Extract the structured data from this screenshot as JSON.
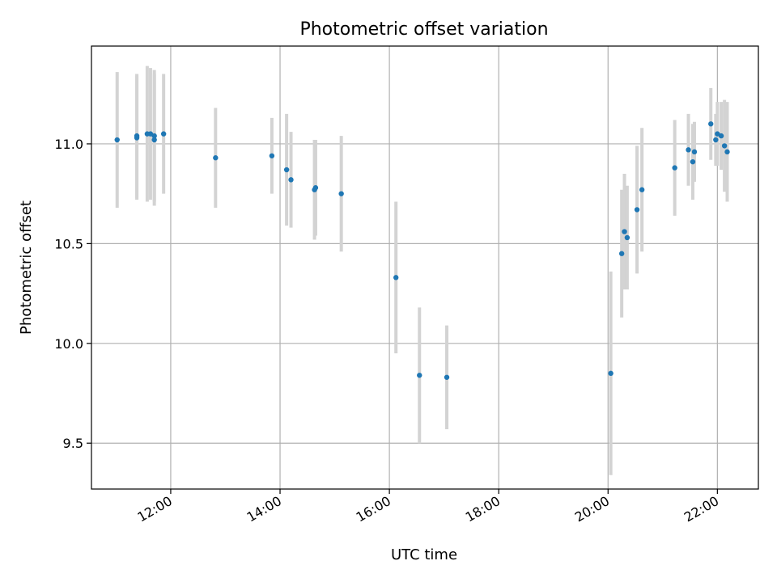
{
  "chart_data": {
    "type": "scatter",
    "title": "Photometric offset variation",
    "xlabel": "UTC time",
    "ylabel": "Photometric offset",
    "x_unit": "hours UTC",
    "xlim": [
      10.55,
      22.75
    ],
    "ylim": [
      9.27,
      11.49
    ],
    "x_ticks": [
      {
        "value": 12,
        "label": "12:00"
      },
      {
        "value": 14,
        "label": "14:00"
      },
      {
        "value": 16,
        "label": "16:00"
      },
      {
        "value": 18,
        "label": "18:00"
      },
      {
        "value": 20,
        "label": "20:00"
      },
      {
        "value": 22,
        "label": "22:00"
      }
    ],
    "y_ticks": [
      {
        "value": 9.5,
        "label": "9.5"
      },
      {
        "value": 10.0,
        "label": "10.0"
      },
      {
        "value": 10.5,
        "label": "10.5"
      },
      {
        "value": 11.0,
        "label": "11.0"
      }
    ],
    "grid": true,
    "colors": {
      "point": "#1f77b4",
      "errorbar": "#d3d3d3",
      "grid": "#b0b0b0"
    },
    "points": [
      {
        "x": 11.02,
        "y": 11.02,
        "yerr": 0.34
      },
      {
        "x": 11.38,
        "y": 11.04,
        "yerr": 0.31
      },
      {
        "x": 11.38,
        "y": 11.03,
        "yerr": 0.31
      },
      {
        "x": 11.57,
        "y": 11.05,
        "yerr": 0.34
      },
      {
        "x": 11.63,
        "y": 11.05,
        "yerr": 0.33
      },
      {
        "x": 11.7,
        "y": 11.04,
        "yerr": 0.33
      },
      {
        "x": 11.7,
        "y": 11.02,
        "yerr": 0.33
      },
      {
        "x": 11.87,
        "y": 11.05,
        "yerr": 0.3
      },
      {
        "x": 12.82,
        "y": 10.93,
        "yerr": 0.25
      },
      {
        "x": 13.85,
        "y": 10.94,
        "yerr": 0.19
      },
      {
        "x": 14.12,
        "y": 10.87,
        "yerr": 0.28
      },
      {
        "x": 14.2,
        "y": 10.82,
        "yerr": 0.24
      },
      {
        "x": 14.65,
        "y": 10.78,
        "yerr": 0.24
      },
      {
        "x": 14.63,
        "y": 10.77,
        "yerr": 0.25
      },
      {
        "x": 15.12,
        "y": 10.75,
        "yerr": 0.29
      },
      {
        "x": 16.12,
        "y": 10.33,
        "yerr": 0.38
      },
      {
        "x": 16.55,
        "y": 9.84,
        "yerr": 0.34
      },
      {
        "x": 17.05,
        "y": 9.83,
        "yerr": 0.26
      },
      {
        "x": 20.05,
        "y": 9.85,
        "yerr": 0.51
      },
      {
        "x": 20.25,
        "y": 10.45,
        "yerr": 0.32
      },
      {
        "x": 20.3,
        "y": 10.56,
        "yerr": 0.29
      },
      {
        "x": 20.35,
        "y": 10.53,
        "yerr": 0.26
      },
      {
        "x": 20.53,
        "y": 10.67,
        "yerr": 0.32
      },
      {
        "x": 20.62,
        "y": 10.77,
        "yerr": 0.31
      },
      {
        "x": 21.22,
        "y": 10.88,
        "yerr": 0.24
      },
      {
        "x": 21.47,
        "y": 10.97,
        "yerr": 0.18
      },
      {
        "x": 21.55,
        "y": 10.91,
        "yerr": 0.19
      },
      {
        "x": 21.58,
        "y": 10.96,
        "yerr": 0.15
      },
      {
        "x": 21.88,
        "y": 11.1,
        "yerr": 0.18
      },
      {
        "x": 21.97,
        "y": 11.02,
        "yerr": 0.13
      },
      {
        "x": 22.0,
        "y": 11.05,
        "yerr": 0.16
      },
      {
        "x": 22.07,
        "y": 11.04,
        "yerr": 0.17
      },
      {
        "x": 22.13,
        "y": 10.99,
        "yerr": 0.23
      },
      {
        "x": 22.18,
        "y": 10.96,
        "yerr": 0.25
      }
    ]
  }
}
